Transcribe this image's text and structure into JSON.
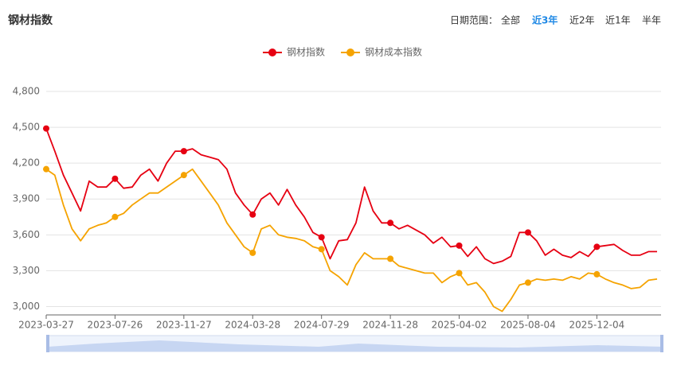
{
  "chart_data": {
    "type": "line",
    "title": "钢材指数",
    "date_range": {
      "label": "日期范围：",
      "options": [
        "全部",
        "近3年",
        "近2年",
        "近1年",
        "半年"
      ],
      "active": 1
    },
    "categories": [
      "2023-03-27",
      null,
      null,
      null,
      null,
      null,
      null,
      null,
      "2023-07-26",
      null,
      null,
      null,
      null,
      null,
      null,
      null,
      "2023-11-27",
      null,
      null,
      null,
      null,
      null,
      null,
      null,
      "2024-03-28",
      null,
      null,
      null,
      null,
      null,
      null,
      null,
      "2024-07-29",
      null,
      null,
      null,
      null,
      null,
      null,
      null,
      "2024-11-28",
      null,
      null,
      null,
      null,
      null,
      null,
      null,
      "2025-04-02",
      null,
      null,
      null,
      null,
      null,
      null,
      null,
      "2025-08-04",
      null,
      null,
      null,
      null,
      null,
      null,
      null,
      "2025-12-04",
      null,
      null,
      null,
      null,
      null,
      null,
      null
    ],
    "series": [
      {
        "name": "钢材指数",
        "color": "#e60012",
        "values": [
          4490,
          4300,
          4100,
          3950,
          3800,
          4050,
          4000,
          4000,
          4070,
          3990,
          4000,
          4100,
          4150,
          4050,
          4200,
          4300,
          4300,
          4320,
          4270,
          4250,
          4230,
          4150,
          3950,
          3850,
          3770,
          3900,
          3950,
          3850,
          3980,
          3850,
          3750,
          3620,
          3580,
          3400,
          3550,
          3560,
          3700,
          4000,
          3800,
          3700,
          3700,
          3650,
          3680,
          3640,
          3600,
          3530,
          3580,
          3500,
          3510,
          3420,
          3500,
          3400,
          3360,
          3380,
          3420,
          3620,
          3620,
          3550,
          3430,
          3480,
          3430,
          3410,
          3460,
          3420,
          3500,
          3510,
          3520,
          3470,
          3430,
          3430,
          3460,
          3460
        ]
      },
      {
        "name": "钢材成本指数",
        "color": "#f5a300",
        "values": [
          4150,
          4100,
          3850,
          3650,
          3550,
          3650,
          3680,
          3700,
          3750,
          3780,
          3850,
          3900,
          3950,
          3950,
          4000,
          4050,
          4100,
          4150,
          4050,
          3950,
          3850,
          3700,
          3600,
          3500,
          3450,
          3650,
          3680,
          3600,
          3580,
          3570,
          3550,
          3500,
          3480,
          3300,
          3250,
          3180,
          3350,
          3450,
          3400,
          3400,
          3400,
          3340,
          3320,
          3300,
          3280,
          3280,
          3200,
          3250,
          3280,
          3180,
          3200,
          3120,
          3000,
          2960,
          3060,
          3180,
          3200,
          3230,
          3220,
          3230,
          3220,
          3250,
          3230,
          3280,
          3270,
          3230,
          3200,
          3180,
          3150,
          3160,
          3220,
          3230
        ]
      }
    ],
    "ylim": [
      2930,
      4800
    ],
    "yticks": [
      {
        "value": 3000,
        "label": "3,000"
      },
      {
        "value": 3300,
        "label": "3,300"
      },
      {
        "value": 3600,
        "label": "3,600"
      },
      {
        "value": 3900,
        "label": "3,900"
      },
      {
        "value": 4200,
        "label": "4,200"
      },
      {
        "value": 4500,
        "label": "4,500"
      },
      {
        "value": 4800,
        "label": "4,800"
      }
    ],
    "grid": true
  }
}
